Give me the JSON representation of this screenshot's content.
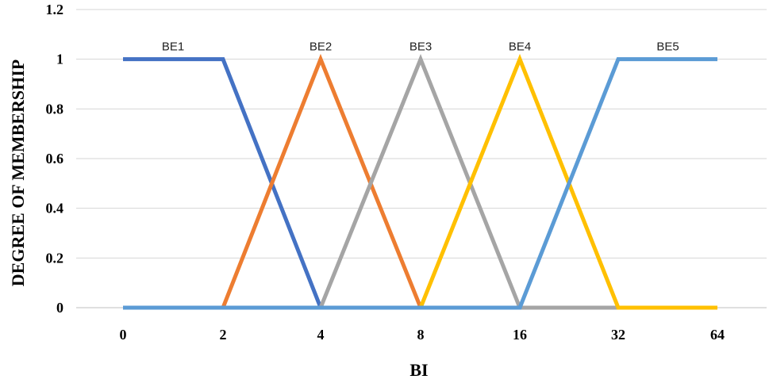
{
  "chart_data": {
    "type": "line",
    "title": "",
    "xlabel": "BI",
    "ylabel": "DEGREE OF MEMBERSHIP",
    "categories": [
      "0",
      "2",
      "4",
      "8",
      "16",
      "32",
      "64"
    ],
    "ylim": [
      0,
      1.2
    ],
    "yticks": [
      "0",
      "0.2",
      "0.4",
      "0.6",
      "0.8",
      "1",
      "1.2"
    ],
    "grid": true,
    "series": [
      {
        "name": "BE1",
        "color": "#4472C4",
        "values": [
          1,
          1,
          0,
          0,
          0,
          0,
          0
        ]
      },
      {
        "name": "BE2",
        "color": "#ED7D31",
        "values": [
          0,
          0,
          1,
          0,
          0,
          0,
          0
        ]
      },
      {
        "name": "BE3",
        "color": "#A5A5A5",
        "values": [
          0,
          0,
          0,
          1,
          0,
          0,
          0
        ]
      },
      {
        "name": "BE4",
        "color": "#FFC000",
        "values": [
          0,
          0,
          0,
          0,
          1,
          0,
          0
        ]
      },
      {
        "name": "BE5",
        "color": "#5B9BD5",
        "values": [
          0,
          0,
          0,
          0,
          0,
          1,
          1
        ]
      }
    ]
  }
}
